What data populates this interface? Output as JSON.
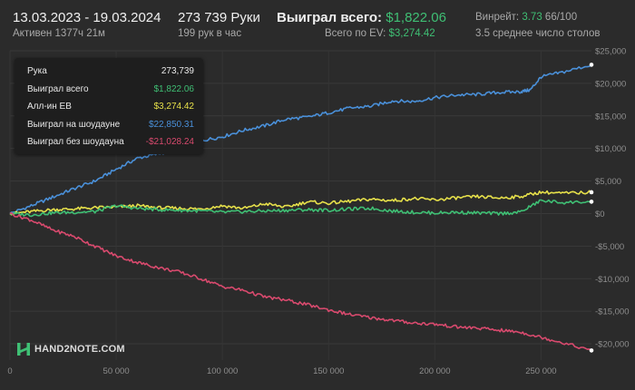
{
  "header": {
    "date_range": "13.03.2023 - 19.03.2024",
    "active_time": "Активен 1377ч 21м",
    "hands": "273 739 Руки",
    "hands_per_hour": "199 рук в час",
    "won_total_label": "Выиграл всего:",
    "won_total_value": "$1,822.06",
    "ev_label": "Всего по EV:",
    "ev_value": "$3,274.42",
    "winrate_label": "Винрейт:",
    "winrate_value": "3.73",
    "winrate_unit": "66/100",
    "avg_tables": "3.5 среднее число столов"
  },
  "tooltip": {
    "rows": [
      {
        "label": "Рука",
        "value": "273,739",
        "color": "#e8e8e8"
      },
      {
        "label": "Выиграл всего",
        "value": "$1,822.06",
        "color": "#3fbf74"
      },
      {
        "label": "Алл-ин EB",
        "value": "$3,274.42",
        "color": "#e6e04a"
      },
      {
        "label": "Выиграл на шоудауне",
        "value": "$22,850.31",
        "color": "#4a90d9"
      },
      {
        "label": "Выиграл без шоудауна",
        "value": "-$21,028.24",
        "color": "#d94a6e"
      }
    ]
  },
  "logo": {
    "text": "HAND2NOTE.COM"
  },
  "chart_data": {
    "type": "line",
    "xlim": [
      0,
      273739
    ],
    "ylim": [
      -22500,
      25000
    ],
    "x_ticks": [
      0,
      50000,
      100000,
      150000,
      200000,
      250000
    ],
    "x_tick_labels": [
      "0",
      "50 000",
      "100 000",
      "150 000",
      "200 000",
      "250 000"
    ],
    "y_ticks": [
      25000,
      20000,
      15000,
      10000,
      5000,
      0,
      -5000,
      -10000,
      -15000,
      -20000
    ],
    "y_tick_labels": [
      "$25,000",
      "$20,000",
      "$15,000",
      "$10,000",
      "$5,000",
      "$0",
      "-$5,000",
      "-$10,000",
      "-$15,000",
      "-$20,000"
    ],
    "grid": true,
    "colors": {
      "won": "#3fbf74",
      "ev": "#e6e04a",
      "showdown": "#4a90d9",
      "non_showdown": "#d94a6e"
    },
    "series": [
      {
        "key": "showdown",
        "color": "#4a90d9",
        "x": [
          0,
          10000,
          20000,
          30000,
          40000,
          50000,
          60000,
          70000,
          80000,
          90000,
          100000,
          110000,
          120000,
          130000,
          140000,
          150000,
          160000,
          170000,
          180000,
          190000,
          200000,
          210000,
          220000,
          230000,
          240000,
          245000,
          250000,
          260000,
          273739
        ],
        "y": [
          0,
          1200,
          2500,
          3800,
          5000,
          6800,
          8500,
          9200,
          10000,
          11200,
          11800,
          12800,
          13500,
          14500,
          14800,
          15500,
          16200,
          16500,
          17300,
          17200,
          17800,
          18200,
          18300,
          18600,
          18700,
          19000,
          21000,
          21700,
          22850
        ]
      },
      {
        "key": "ev",
        "color": "#e6e04a",
        "x": [
          0,
          10000,
          20000,
          30000,
          40000,
          50000,
          60000,
          70000,
          80000,
          90000,
          100000,
          110000,
          120000,
          130000,
          140000,
          150000,
          160000,
          170000,
          180000,
          190000,
          200000,
          210000,
          220000,
          230000,
          240000,
          250000,
          260000,
          273739
        ],
        "y": [
          0,
          300,
          600,
          700,
          900,
          1000,
          1200,
          900,
          800,
          700,
          1200,
          800,
          1500,
          1000,
          1800,
          1600,
          1900,
          2200,
          2000,
          2300,
          2100,
          2400,
          2600,
          2400,
          2600,
          3300,
          3100,
          3274
        ]
      },
      {
        "key": "won",
        "color": "#3fbf74",
        "x": [
          0,
          10000,
          20000,
          30000,
          40000,
          50000,
          60000,
          70000,
          80000,
          90000,
          100000,
          110000,
          120000,
          130000,
          140000,
          150000,
          160000,
          170000,
          180000,
          190000,
          200000,
          210000,
          220000,
          230000,
          240000,
          250000,
          260000,
          273739
        ],
        "y": [
          0,
          -200,
          100,
          200,
          300,
          1200,
          800,
          600,
          500,
          400,
          200,
          300,
          400,
          500,
          600,
          500,
          700,
          800,
          400,
          200,
          100,
          200,
          100,
          0,
          200,
          2000,
          1700,
          1822
        ]
      },
      {
        "key": "non_showdown",
        "color": "#d94a6e",
        "x": [
          0,
          10000,
          20000,
          30000,
          40000,
          50000,
          60000,
          70000,
          80000,
          90000,
          100000,
          110000,
          120000,
          130000,
          140000,
          150000,
          160000,
          170000,
          180000,
          190000,
          200000,
          210000,
          220000,
          230000,
          240000,
          250000,
          260000,
          273739
        ],
        "y": [
          0,
          -1000,
          -2500,
          -3500,
          -5000,
          -6500,
          -7500,
          -8300,
          -9000,
          -10000,
          -11200,
          -11800,
          -12800,
          -13300,
          -14000,
          -14800,
          -15500,
          -16000,
          -16400,
          -16800,
          -17000,
          -17400,
          -17600,
          -17900,
          -18200,
          -19000,
          -19800,
          -21028
        ]
      }
    ]
  }
}
